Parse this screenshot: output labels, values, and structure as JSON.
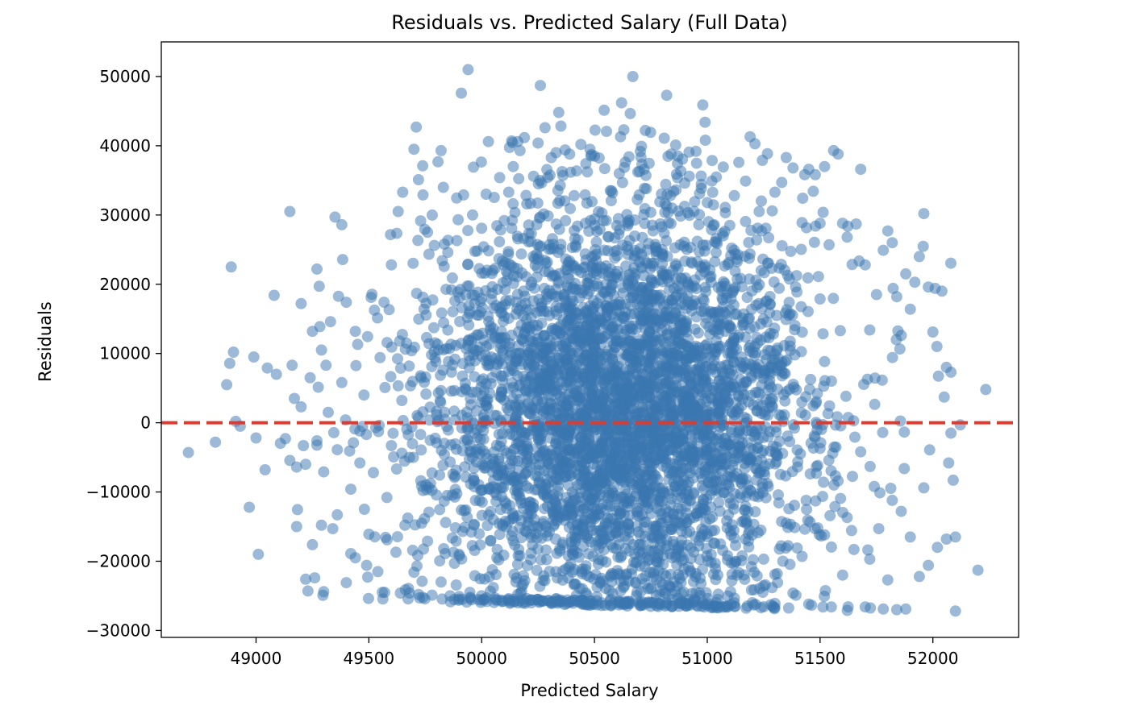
{
  "chart_data": {
    "type": "scatter",
    "title": "Residuals vs. Predicted Salary (Full Data)",
    "xlabel": "Predicted Salary",
    "ylabel": "Residuals",
    "xlim": [
      48580,
      52380
    ],
    "ylim": [
      -31000,
      55000
    ],
    "xticks": [
      49000,
      49500,
      50000,
      50500,
      51000,
      51500,
      52000
    ],
    "xtick_labels": [
      "49000",
      "49500",
      "50000",
      "50500",
      "51000",
      "51500",
      "52000"
    ],
    "yticks": [
      -30000,
      -20000,
      -10000,
      0,
      10000,
      20000,
      30000,
      40000,
      50000
    ],
    "ytick_labels": [
      "−30000",
      "−20000",
      "−10000",
      "0",
      "10000",
      "20000",
      "30000",
      "40000",
      "50000"
    ],
    "grid": false,
    "point_color": "#3a75b0",
    "point_alpha": 0.5,
    "reference_line": {
      "y": 0,
      "color": "#e03a2f",
      "style": "dashed"
    },
    "points": [
      [
        48700,
        -4300
      ],
      [
        48820,
        -2800
      ],
      [
        48870,
        5500
      ],
      [
        48890,
        22500
      ],
      [
        48900,
        10200
      ],
      [
        48910,
        200
      ],
      [
        48930,
        -500
      ],
      [
        48970,
        -12200
      ],
      [
        48990,
        9500
      ],
      [
        49000,
        -2200
      ],
      [
        49010,
        -19000
      ],
      [
        49040,
        -6800
      ],
      [
        49050,
        7900
      ],
      [
        49080,
        18400
      ],
      [
        49090,
        7000
      ],
      [
        49130,
        -2300
      ],
      [
        49150,
        30500
      ],
      [
        49160,
        8300
      ],
      [
        49170,
        3500
      ],
      [
        49180,
        -6400
      ],
      [
        49180,
        -15000
      ],
      [
        49200,
        17200
      ],
      [
        49210,
        -3300
      ],
      [
        49220,
        -22600
      ],
      [
        49230,
        -24300
      ],
      [
        49250,
        13200
      ],
      [
        49260,
        -22400
      ],
      [
        49270,
        22200
      ],
      [
        49280,
        19700
      ],
      [
        49290,
        -14800
      ],
      [
        49300,
        -24400
      ],
      [
        49310,
        8300
      ],
      [
        49330,
        14600
      ],
      [
        49350,
        29700
      ],
      [
        49360,
        -13300
      ],
      [
        49380,
        28600
      ],
      [
        49400,
        17400
      ],
      [
        49420,
        -18900
      ],
      [
        49440,
        13200
      ],
      [
        49460,
        -5800
      ],
      [
        49490,
        -20600
      ],
      [
        49510,
        18100
      ],
      [
        49550,
        9400
      ],
      [
        49570,
        -24500
      ],
      [
        49600,
        22800
      ],
      [
        49630,
        30500
      ],
      [
        49650,
        33300
      ],
      [
        49680,
        -24600
      ],
      [
        49700,
        39500
      ],
      [
        49710,
        42700
      ],
      [
        49720,
        35100
      ],
      [
        49740,
        32900
      ],
      [
        49760,
        27500
      ],
      [
        49790,
        25600
      ],
      [
        49820,
        39300
      ],
      [
        49830,
        34000
      ],
      [
        49850,
        24600
      ],
      [
        49870,
        20900
      ],
      [
        49890,
        26300
      ],
      [
        49900,
        -25100
      ],
      [
        49910,
        47600
      ],
      [
        49920,
        32900
      ],
      [
        49940,
        51000
      ],
      [
        49960,
        30000
      ],
      [
        49980,
        24800
      ],
      [
        50010,
        -25500
      ],
      [
        50020,
        33000
      ],
      [
        50030,
        40600
      ],
      [
        50050,
        22000
      ],
      [
        50080,
        35400
      ],
      [
        50100,
        29200
      ],
      [
        50120,
        33300
      ],
      [
        50140,
        37000
      ],
      [
        50160,
        40600
      ],
      [
        50170,
        39300
      ],
      [
        50200,
        31600
      ],
      [
        50230,
        35600
      ],
      [
        50250,
        40400
      ],
      [
        50260,
        48700
      ],
      [
        50300,
        25700
      ],
      [
        50330,
        39000
      ],
      [
        50360,
        35700
      ],
      [
        50370,
        39400
      ],
      [
        50390,
        38800
      ],
      [
        50410,
        32800
      ],
      [
        50440,
        40200
      ],
      [
        50460,
        28800
      ],
      [
        50480,
        39500
      ],
      [
        50500,
        38500
      ],
      [
        50540,
        29200
      ],
      [
        50580,
        33200
      ],
      [
        50590,
        26700
      ],
      [
        50600,
        24900
      ],
      [
        50610,
        36000
      ],
      [
        50620,
        46200
      ],
      [
        50630,
        42300
      ],
      [
        50650,
        28800
      ],
      [
        50670,
        50000
      ],
      [
        50700,
        36300
      ],
      [
        50720,
        36600
      ],
      [
        50730,
        33800
      ],
      [
        50760,
        27700
      ],
      [
        50790,
        31900
      ],
      [
        50820,
        47300
      ],
      [
        50840,
        38800
      ],
      [
        50860,
        40100
      ],
      [
        50870,
        38500
      ],
      [
        50900,
        34600
      ],
      [
        50920,
        35600
      ],
      [
        50950,
        39200
      ],
      [
        50980,
        45900
      ],
      [
        50990,
        43400
      ],
      [
        51000,
        31800
      ],
      [
        51020,
        34900
      ],
      [
        51040,
        35500
      ],
      [
        51080,
        31100
      ],
      [
        51100,
        28500
      ],
      [
        51120,
        32800
      ],
      [
        51140,
        37600
      ],
      [
        51170,
        34900
      ],
      [
        51190,
        41300
      ],
      [
        51230,
        30500
      ],
      [
        51260,
        28100
      ],
      [
        51300,
        33300
      ],
      [
        51330,
        34700
      ],
      [
        51350,
        38300
      ],
      [
        51380,
        36800
      ],
      [
        51420,
        28900
      ],
      [
        51450,
        36600
      ],
      [
        51480,
        28400
      ],
      [
        51500,
        28800
      ],
      [
        51520,
        37000
      ],
      [
        51540,
        25700
      ],
      [
        51560,
        39300
      ],
      [
        51580,
        38800
      ],
      [
        51600,
        28800
      ],
      [
        51620,
        26800
      ],
      [
        51660,
        28700
      ],
      [
        51680,
        36600
      ],
      [
        51700,
        22800
      ],
      [
        51720,
        13400
      ],
      [
        51750,
        18500
      ],
      [
        51780,
        24900
      ],
      [
        51800,
        27700
      ],
      [
        51820,
        26000
      ],
      [
        51840,
        18200
      ],
      [
        51860,
        12600
      ],
      [
        51880,
        21500
      ],
      [
        51900,
        16400
      ],
      [
        51920,
        20300
      ],
      [
        51940,
        24000
      ],
      [
        51960,
        30200
      ],
      [
        51980,
        19600
      ],
      [
        52000,
        13100
      ],
      [
        52010,
        19400
      ],
      [
        52040,
        19000
      ],
      [
        52060,
        8000
      ],
      [
        52080,
        7300
      ],
      [
        52050,
        3700
      ],
      [
        52080,
        -1500
      ],
      [
        52070,
        -5800
      ],
      [
        52090,
        -8300
      ],
      [
        52100,
        -16500
      ],
      [
        52060,
        -16800
      ],
      [
        52020,
        -18000
      ],
      [
        52100,
        -27200
      ],
      [
        52200,
        -21300
      ],
      [
        51980,
        -20600
      ],
      [
        51960,
        -9400
      ],
      [
        51940,
        -22200
      ],
      [
        51900,
        -16500
      ],
      [
        51880,
        -26900
      ],
      [
        51860,
        -12800
      ],
      [
        51840,
        -27000
      ],
      [
        51820,
        -11200
      ],
      [
        51800,
        -22700
      ],
      [
        51780,
        -26900
      ],
      [
        51760,
        -15300
      ],
      [
        51740,
        -9200
      ],
      [
        51720,
        -19700
      ],
      [
        51700,
        -26600
      ],
      [
        51680,
        -4200
      ],
      [
        51650,
        -18300
      ],
      [
        51620,
        -13700
      ],
      [
        51600,
        -22000
      ],
      [
        51580,
        -8400
      ],
      [
        51550,
        -26600
      ],
      [
        51520,
        -16200
      ],
      [
        51500,
        -3700
      ],
      [
        51480,
        -11300
      ],
      [
        51450,
        -26200
      ],
      [
        51420,
        -19300
      ],
      [
        51400,
        -6400
      ],
      [
        51380,
        -24600
      ],
      [
        51350,
        -14500
      ],
      [
        51320,
        -2700
      ],
      [
        51300,
        -26100
      ],
      [
        51270,
        -9200
      ],
      [
        51250,
        -19700
      ],
      [
        51220,
        -5500
      ],
      [
        51200,
        -26000
      ],
      [
        51170,
        -14000
      ],
      [
        51140,
        -2400
      ],
      [
        51120,
        -26000
      ],
      [
        51090,
        -19200
      ],
      [
        51070,
        -8300
      ],
      [
        51040,
        -26000
      ],
      [
        51020,
        -15600
      ],
      [
        51000,
        -1100
      ],
      [
        50980,
        -26000
      ],
      [
        50950,
        -21800
      ],
      [
        50920,
        -11300
      ],
      [
        50900,
        -26000
      ],
      [
        50870,
        -4800
      ],
      [
        50850,
        -17600
      ],
      [
        50820,
        -26000
      ],
      [
        50790,
        -9500
      ],
      [
        50760,
        -22300
      ],
      [
        50740,
        -25900
      ],
      [
        50700,
        -13500
      ],
      [
        50680,
        -2600
      ],
      [
        50650,
        -25800
      ],
      [
        50620,
        -19200
      ],
      [
        50600,
        -7800
      ],
      [
        50570,
        -25700
      ],
      [
        50540,
        -15100
      ],
      [
        50510,
        -25700
      ],
      [
        50490,
        -3600
      ],
      [
        50460,
        -21200
      ],
      [
        50440,
        -25600
      ],
      [
        50410,
        -10400
      ],
      [
        50380,
        -25600
      ],
      [
        50360,
        -17300
      ],
      [
        50330,
        -25500
      ],
      [
        50300,
        -5900
      ],
      [
        50280,
        -22800
      ],
      [
        50250,
        -25500
      ],
      [
        50220,
        -13200
      ],
      [
        50200,
        -25400
      ],
      [
        50170,
        -19200
      ],
      [
        50140,
        -1800
      ],
      [
        50120,
        -25400
      ],
      [
        50090,
        -9400
      ],
      [
        50060,
        -25300
      ],
      [
        50040,
        -17000
      ],
      [
        50020,
        -25300
      ],
      [
        49990,
        -4500
      ],
      [
        49970,
        -22100
      ],
      [
        49950,
        -25200
      ],
      [
        49930,
        -12600
      ],
      [
        49900,
        -19000
      ],
      [
        49880,
        -7900
      ],
      [
        49860,
        -25000
      ],
      [
        49840,
        -14400
      ],
      [
        49820,
        -23000
      ],
      [
        49800,
        -2900
      ],
      [
        49780,
        -24900
      ],
      [
        49760,
        -17100
      ],
      [
        49740,
        -9800
      ],
      [
        49720,
        -24800
      ],
      [
        49700,
        -21600
      ],
      [
        49680,
        -5000
      ],
      [
        49660,
        -14800
      ],
      [
        49640,
        -24600
      ],
      [
        49620,
        -18700
      ],
      [
        49600,
        -3300
      ],
      [
        49580,
        -10800
      ],
      [
        49560,
        -24500
      ],
      [
        49540,
        -21500
      ],
      [
        49520,
        -7200
      ],
      [
        49500,
        -16100
      ],
      [
        49480,
        -12500
      ],
      [
        49460,
        -1200
      ],
      [
        49440,
        -19500
      ],
      [
        49420,
        -9600
      ],
      [
        49400,
        -23100
      ],
      [
        49380,
        5800
      ],
      [
        49360,
        -3900
      ],
      [
        49340,
        -15300
      ],
      [
        49320,
        1500
      ],
      [
        49300,
        -7100
      ],
      [
        49290,
        10500
      ],
      [
        49270,
        -2600
      ],
      [
        49250,
        -17600
      ],
      [
        49240,
        6500
      ],
      [
        49220,
        -6000
      ],
      [
        49200,
        2300
      ]
    ],
    "cloud_seed": 12345,
    "cloud_count": 4400
  }
}
